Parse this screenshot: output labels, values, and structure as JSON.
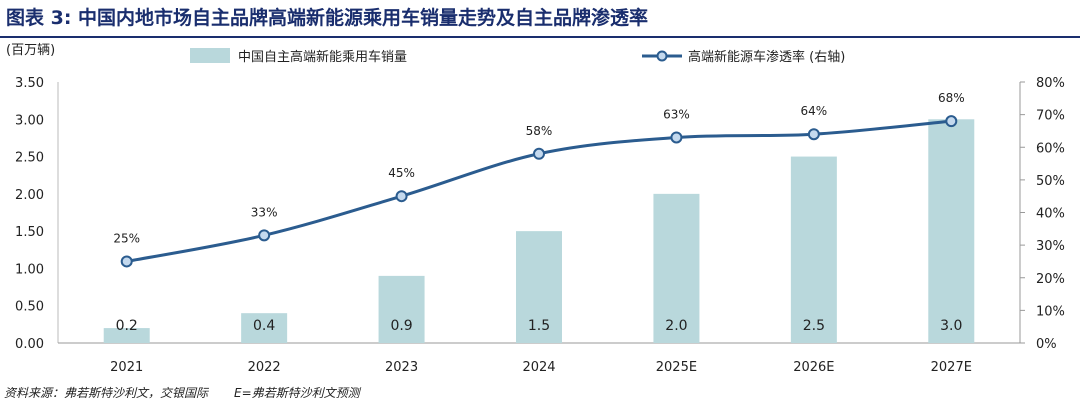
{
  "title": "图表 3: 中国内地市场自主品牌高端新能源乘用车销量走势及自主品牌渗透率",
  "source": {
    "left": "资料来源：弗若斯特沙利文，交银国际",
    "right": "E=弗若斯特沙利文预测"
  },
  "colors": {
    "title": "#1a2e6e",
    "bar": "#b9d8dc",
    "line": "#2b5c8f",
    "marker_fill": "#c4d9ee"
  },
  "chart_data": {
    "type": "bar+line",
    "unit_label": "(百万辆)",
    "categories": [
      "2021",
      "2022",
      "2023",
      "2024",
      "2025E",
      "2026E",
      "2027E"
    ],
    "series": [
      {
        "name": "中国自主高端新能乘用车销量",
        "type": "bar",
        "axis": "left",
        "values": [
          0.2,
          0.4,
          0.9,
          1.5,
          2.0,
          2.5,
          3.0
        ],
        "labels": [
          "0.2",
          "0.4",
          "0.9",
          "1.5",
          "2.0",
          "2.5",
          "3.0"
        ]
      },
      {
        "name": "高端新能源车渗透率 (右轴)",
        "type": "line",
        "axis": "right",
        "values": [
          25,
          33,
          45,
          58,
          63,
          64,
          68
        ],
        "labels": [
          "25%",
          "33%",
          "45%",
          "58%",
          "63%",
          "64%",
          "68%"
        ]
      }
    ],
    "y_left": {
      "min": 0,
      "max": 3.5,
      "ticks": [
        "0.00",
        "0.50",
        "1.00",
        "1.50",
        "2.00",
        "2.50",
        "3.00",
        "3.50"
      ]
    },
    "y_right": {
      "min": 0,
      "max": 80,
      "ticks": [
        "0%",
        "10%",
        "20%",
        "30%",
        "40%",
        "50%",
        "60%",
        "70%",
        "80%"
      ]
    },
    "legend_position": "top"
  }
}
